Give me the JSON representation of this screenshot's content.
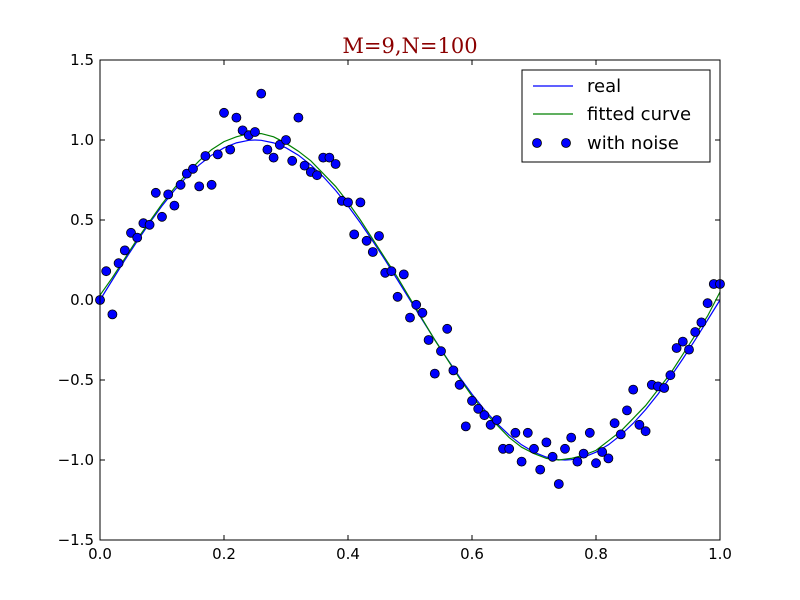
{
  "chart_data": {
    "type": "line",
    "title": "M=9,N=100",
    "title_color": "#8b0000",
    "xlim": [
      0.0,
      1.0
    ],
    "ylim": [
      -1.5,
      1.5
    ],
    "xticks": [
      0.0,
      0.2,
      0.4,
      0.6,
      0.8,
      1.0
    ],
    "xtick_labels": [
      "0.0",
      "0.2",
      "0.4",
      "0.6",
      "0.8",
      "1.0"
    ],
    "yticks": [
      -1.5,
      -1.0,
      -0.5,
      0.0,
      0.5,
      1.0,
      1.5
    ],
    "ytick_labels": [
      "−1.5",
      "−1.0",
      "−0.5",
      "0.0",
      "0.5",
      "1.0",
      "1.5"
    ],
    "grid": false,
    "legend_position": "top-right",
    "series": [
      {
        "name": "real",
        "kind": "line",
        "color": "#0000ff",
        "x": [
          0.0,
          0.02,
          0.04,
          0.06,
          0.08,
          0.1,
          0.12,
          0.14,
          0.16,
          0.18,
          0.2,
          0.22,
          0.24,
          0.25,
          0.26,
          0.28,
          0.3,
          0.32,
          0.34,
          0.36,
          0.38,
          0.4,
          0.42,
          0.44,
          0.46,
          0.48,
          0.5,
          0.52,
          0.54,
          0.56,
          0.58,
          0.6,
          0.62,
          0.64,
          0.66,
          0.68,
          0.7,
          0.72,
          0.74,
          0.75,
          0.76,
          0.78,
          0.8,
          0.82,
          0.84,
          0.86,
          0.88,
          0.9,
          0.92,
          0.94,
          0.96,
          0.98,
          1.0
        ],
        "y": [
          0.0,
          0.125,
          0.249,
          0.368,
          0.482,
          0.588,
          0.685,
          0.771,
          0.844,
          0.905,
          0.951,
          0.982,
          0.998,
          1.0,
          0.998,
          0.982,
          0.951,
          0.905,
          0.844,
          0.771,
          0.685,
          0.588,
          0.482,
          0.368,
          0.249,
          0.125,
          0.0,
          -0.125,
          -0.249,
          -0.368,
          -0.482,
          -0.588,
          -0.685,
          -0.771,
          -0.844,
          -0.905,
          -0.951,
          -0.982,
          -0.998,
          -1.0,
          -0.998,
          -0.982,
          -0.951,
          -0.905,
          -0.844,
          -0.771,
          -0.685,
          -0.588,
          -0.482,
          -0.368,
          -0.249,
          -0.125,
          0.0
        ]
      },
      {
        "name": "fitted curve",
        "kind": "line",
        "color": "#008000",
        "x": [
          0.0,
          0.02,
          0.04,
          0.06,
          0.08,
          0.1,
          0.12,
          0.14,
          0.16,
          0.18,
          0.2,
          0.22,
          0.24,
          0.26,
          0.28,
          0.3,
          0.32,
          0.34,
          0.36,
          0.38,
          0.4,
          0.42,
          0.44,
          0.46,
          0.48,
          0.5,
          0.52,
          0.54,
          0.56,
          0.58,
          0.6,
          0.62,
          0.64,
          0.66,
          0.68,
          0.7,
          0.72,
          0.74,
          0.76,
          0.78,
          0.8,
          0.82,
          0.84,
          0.86,
          0.88,
          0.9,
          0.92,
          0.94,
          0.96,
          0.98,
          1.0
        ],
        "y": [
          0.03,
          0.14,
          0.26,
          0.38,
          0.49,
          0.6,
          0.7,
          0.79,
          0.87,
          0.94,
          0.99,
          1.02,
          1.04,
          1.04,
          1.02,
          0.98,
          0.93,
          0.87,
          0.79,
          0.71,
          0.61,
          0.5,
          0.38,
          0.26,
          0.14,
          0.01,
          -0.12,
          -0.25,
          -0.37,
          -0.49,
          -0.6,
          -0.7,
          -0.78,
          -0.86,
          -0.92,
          -0.96,
          -0.99,
          -1.0,
          -0.99,
          -0.97,
          -0.94,
          -0.88,
          -0.82,
          -0.74,
          -0.66,
          -0.56,
          -0.46,
          -0.34,
          -0.22,
          -0.1,
          0.05
        ]
      },
      {
        "name": "with noise",
        "kind": "scatter",
        "color": "#0000ff",
        "x": [
          0.0,
          0.01,
          0.02,
          0.03,
          0.04,
          0.05,
          0.06,
          0.07,
          0.08,
          0.09,
          0.1,
          0.11,
          0.12,
          0.13,
          0.14,
          0.15,
          0.16,
          0.17,
          0.18,
          0.19,
          0.2,
          0.21,
          0.22,
          0.23,
          0.24,
          0.25,
          0.26,
          0.27,
          0.28,
          0.29,
          0.3,
          0.31,
          0.32,
          0.33,
          0.34,
          0.35,
          0.36,
          0.37,
          0.38,
          0.39,
          0.4,
          0.41,
          0.42,
          0.43,
          0.44,
          0.45,
          0.46,
          0.47,
          0.48,
          0.49,
          0.5,
          0.51,
          0.52,
          0.53,
          0.54,
          0.55,
          0.56,
          0.57,
          0.58,
          0.59,
          0.6,
          0.61,
          0.62,
          0.63,
          0.64,
          0.65,
          0.66,
          0.67,
          0.68,
          0.69,
          0.7,
          0.71,
          0.72,
          0.73,
          0.74,
          0.75,
          0.76,
          0.77,
          0.78,
          0.79,
          0.8,
          0.81,
          0.82,
          0.83,
          0.84,
          0.85,
          0.86,
          0.87,
          0.88,
          0.89,
          0.9,
          0.91,
          0.92,
          0.93,
          0.94,
          0.95,
          0.96,
          0.97,
          0.98,
          0.99,
          1.0
        ],
        "y": [
          0.0,
          0.18,
          -0.09,
          0.23,
          0.31,
          0.42,
          0.39,
          0.48,
          0.47,
          0.67,
          0.52,
          0.66,
          0.59,
          0.72,
          0.79,
          0.82,
          0.71,
          0.9,
          0.72,
          0.91,
          1.17,
          0.94,
          1.14,
          1.06,
          1.03,
          1.05,
          1.29,
          0.94,
          0.89,
          0.97,
          1.0,
          0.87,
          1.14,
          0.84,
          0.8,
          0.78,
          0.89,
          0.89,
          0.85,
          0.62,
          0.61,
          0.41,
          0.61,
          0.37,
          0.3,
          0.4,
          0.17,
          0.18,
          0.02,
          0.16,
          -0.11,
          -0.03,
          -0.08,
          -0.25,
          -0.46,
          -0.32,
          -0.18,
          -0.44,
          -0.53,
          -0.79,
          -0.63,
          -0.68,
          -0.72,
          -0.78,
          -0.75,
          -0.93,
          -0.93,
          -0.83,
          -1.01,
          -0.83,
          -0.93,
          -1.06,
          -0.89,
          -0.98,
          -1.15,
          -0.93,
          -0.86,
          -1.01,
          -0.96,
          -0.83,
          -1.02,
          -0.95,
          -0.99,
          -0.77,
          -0.84,
          -0.69,
          -0.56,
          -0.78,
          -0.82,
          -0.53,
          -0.54,
          -0.55,
          -0.47,
          -0.3,
          -0.26,
          -0.31,
          -0.2,
          -0.14,
          -0.02,
          0.1,
          0.1
        ]
      }
    ]
  }
}
